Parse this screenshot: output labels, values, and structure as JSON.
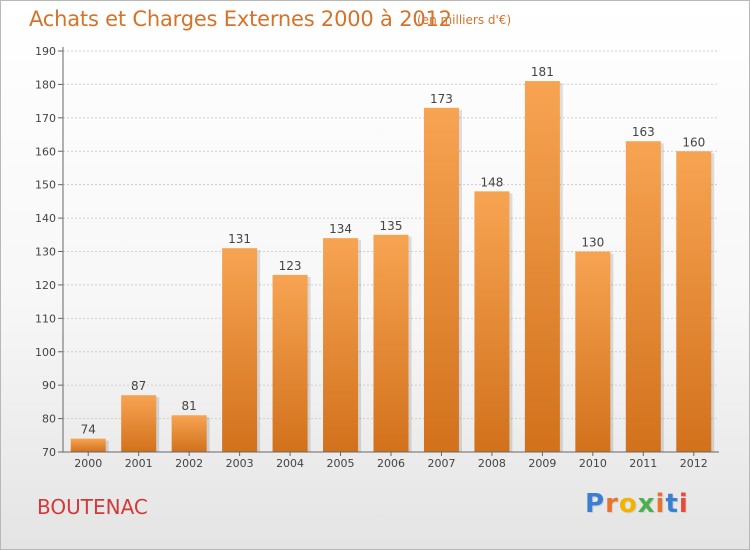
{
  "header": {
    "title": "Achats et Charges Externes 2000 à 2012",
    "subtitle": "(en milliers d'€)"
  },
  "footer": {
    "location": "BOUTENAC",
    "logo_text": "Proxiti",
    "logo_colors": [
      "#3b7fd1",
      "#e8732c",
      "#f0b400",
      "#4caf50",
      "#e8732c",
      "#3b7fd1",
      "#e84a3a"
    ]
  },
  "colors": {
    "bar_top": "#f7a452",
    "bar_bottom": "#d2711c",
    "axis": "#666666",
    "grid": "#cfcfcf",
    "label": "#444444"
  },
  "chart_data": {
    "type": "bar",
    "categories": [
      "2000",
      "2001",
      "2002",
      "2003",
      "2004",
      "2005",
      "2006",
      "2007",
      "2008",
      "2009",
      "2010",
      "2011",
      "2012"
    ],
    "values": [
      74,
      87,
      81,
      131,
      123,
      134,
      135,
      173,
      148,
      181,
      130,
      163,
      160
    ],
    "data_labels": [
      "74",
      "87",
      "81",
      "131",
      "123",
      "134",
      "135",
      "173",
      "148",
      "181",
      "130",
      "163",
      "160"
    ],
    "yticks": [
      "70",
      "80",
      "90",
      "100",
      "110",
      "120",
      "130",
      "140",
      "150",
      "160",
      "170",
      "180",
      "190"
    ],
    "ylim": [
      70,
      190
    ],
    "grid": true,
    "title": "Achats et Charges Externes 2000 à 2012",
    "xlabel": "",
    "ylabel": ""
  }
}
